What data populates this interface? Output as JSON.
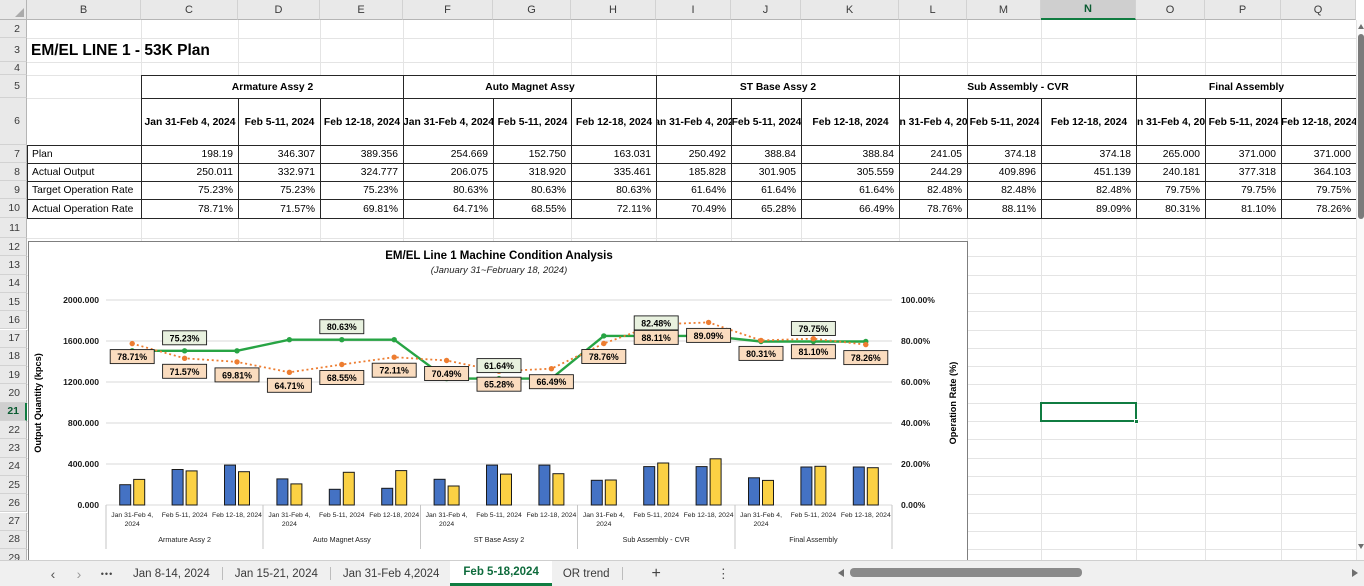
{
  "column_headers": {
    "letters": [
      "B",
      "C",
      "D",
      "E",
      "F",
      "G",
      "H",
      "I",
      "J",
      "K",
      "L",
      "M",
      "N",
      "O",
      "P",
      "Q"
    ],
    "selected": "N"
  },
  "row_headers": {
    "numbers": [
      2,
      3,
      4,
      5,
      6,
      7,
      8,
      9,
      10,
      11,
      12,
      13,
      14,
      15,
      16,
      17,
      18,
      19,
      20,
      21,
      22,
      23,
      24,
      25,
      26,
      27,
      28,
      29
    ],
    "selected": 21
  },
  "sheet": {
    "title": "EM/EL LINE 1 - 53K Plan",
    "table": {
      "groups": [
        "Armature Assy 2",
        "Auto Magnet Assy",
        "ST Base Assy 2",
        "Sub Assembly - CVR",
        "Final Assembly"
      ],
      "period_headers": [
        "Jan 31-Feb 4, 2024",
        "Feb 5-11, 2024",
        "Feb 12-18, 2024"
      ],
      "rows": [
        {
          "label": "Plan",
          "values": [
            "198.19",
            "346.307",
            "389.356",
            "254.669",
            "152.750",
            "163.031",
            "250.492",
            "388.84",
            "388.84",
            "241.05",
            "374.18",
            "374.18",
            "265.000",
            "371.000",
            "371.000"
          ]
        },
        {
          "label": "Actual Output",
          "values": [
            "250.011",
            "332.971",
            "324.777",
            "206.075",
            "318.920",
            "335.461",
            "185.828",
            "301.905",
            "305.559",
            "244.29",
            "409.896",
            "451.139",
            "240.181",
            "377.318",
            "364.103"
          ]
        },
        {
          "label": "Target Operation Rate",
          "values": [
            "75.23%",
            "75.23%",
            "75.23%",
            "80.63%",
            "80.63%",
            "80.63%",
            "61.64%",
            "61.64%",
            "61.64%",
            "82.48%",
            "82.48%",
            "82.48%",
            "79.75%",
            "79.75%",
            "79.75%"
          ]
        },
        {
          "label": "Actual Operation Rate",
          "values": [
            "78.71%",
            "71.57%",
            "69.81%",
            "64.71%",
            "68.55%",
            "72.11%",
            "70.49%",
            "65.28%",
            "66.49%",
            "78.76%",
            "88.11%",
            "89.09%",
            "80.31%",
            "81.10%",
            "78.26%"
          ]
        }
      ]
    }
  },
  "chart_data": {
    "type": "combo-bar-line",
    "title": "EM/EL Line 1 Machine Condition Analysis",
    "subtitle": "(January 31~February 18, 2024)",
    "ylabel_left": "Output Quantity (kpcs)",
    "ylabel_right": "Operation Rate (%)",
    "ylim_left": [
      0,
      2000
    ],
    "ylim_right": [
      0,
      100
    ],
    "yticks_left": [
      "0.000",
      "400.000",
      "800.000",
      "1200.000",
      "1600.000",
      "2000.000"
    ],
    "yticks_right": [
      "0.00%",
      "20.00%",
      "40.00%",
      "60.00%",
      "80.00%",
      "100.00%"
    ],
    "groups": [
      "Armature Assy 2",
      "Auto Magnet Assy",
      "ST Base Assy 2",
      "Sub Assembly - CVR",
      "Final Assembly"
    ],
    "periods": [
      "Jan 31-Feb 4, 2024",
      "Feb 5-11, 2024",
      "Feb 12-18, 2024"
    ],
    "period_lines": [
      [
        "Jan 31-Feb 4,",
        "2024"
      ],
      [
        "Feb 5-11, 2024"
      ],
      [
        "Feb 12-18, 2024"
      ]
    ],
    "series": [
      {
        "name": "Plan",
        "type": "bar",
        "color": "#4472C4",
        "values": [
          198.19,
          346.307,
          389.356,
          254.669,
          152.75,
          163.031,
          250.492,
          388.84,
          388.84,
          241.05,
          374.18,
          374.18,
          265,
          371,
          371
        ]
      },
      {
        "name": "Actual Output",
        "type": "bar",
        "color": "#FBD144",
        "values": [
          250.011,
          332.971,
          324.777,
          206.075,
          318.92,
          335.461,
          185.828,
          301.905,
          305.559,
          244.29,
          409.896,
          451.139,
          240.181,
          377.318,
          364.103
        ]
      },
      {
        "name": "Target Operation Rate",
        "type": "line",
        "style": "solid",
        "axis": "right",
        "color": "#27A444",
        "label_bg": "#E8F1DF",
        "values": [
          75.23,
          75.23,
          75.23,
          80.63,
          80.63,
          80.63,
          61.64,
          61.64,
          61.64,
          82.48,
          82.48,
          82.48,
          79.75,
          79.75,
          79.75
        ]
      },
      {
        "name": "Actual Operation Rate",
        "type": "line",
        "style": "dotted",
        "axis": "right",
        "color": "#ED7D31",
        "label_bg": "#FADCBF",
        "values": [
          78.71,
          71.57,
          69.81,
          64.71,
          68.55,
          72.11,
          70.49,
          65.28,
          66.49,
          78.76,
          88.11,
          89.09,
          80.31,
          81.1,
          78.26
        ]
      }
    ],
    "target_label_slots": [
      1,
      4,
      7,
      10,
      13
    ],
    "target_rate_labels": [
      "75.23%",
      "80.63%",
      "61.64%",
      "82.48%",
      "79.75%"
    ],
    "actual_rate_labels": [
      "78.71%",
      "71.57%",
      "69.81%",
      "64.71%",
      "68.55%",
      "72.11%",
      "70.49%",
      "65.28%",
      "66.49%",
      "78.76%",
      "88.11%",
      "89.09%",
      "80.31%",
      "81.10%",
      "78.26%"
    ],
    "legend_position": "none",
    "grid": true
  },
  "tab_bar": {
    "nav_prev": "‹",
    "nav_next": "›",
    "ellipsis": "•••",
    "tabs": [
      {
        "label": "Jan 8-14, 2024",
        "active": false
      },
      {
        "label": "Jan 15-21, 2024",
        "active": false
      },
      {
        "label": "Jan 31-Feb 4,2024",
        "active": false
      },
      {
        "label": "Feb 5-18,2024",
        "active": true
      },
      {
        "label": "OR trend",
        "active": false
      }
    ],
    "add_label": "+",
    "more_label": "⋮"
  },
  "colors": {
    "accent_green": "#107C41",
    "bar_plan": "#4472C4",
    "bar_actual": "#FBD144",
    "line_target": "#27A444",
    "line_actual": "#ED7D31",
    "label_box_actual": "#FADCBF",
    "label_box_target": "#E8F1DF"
  }
}
